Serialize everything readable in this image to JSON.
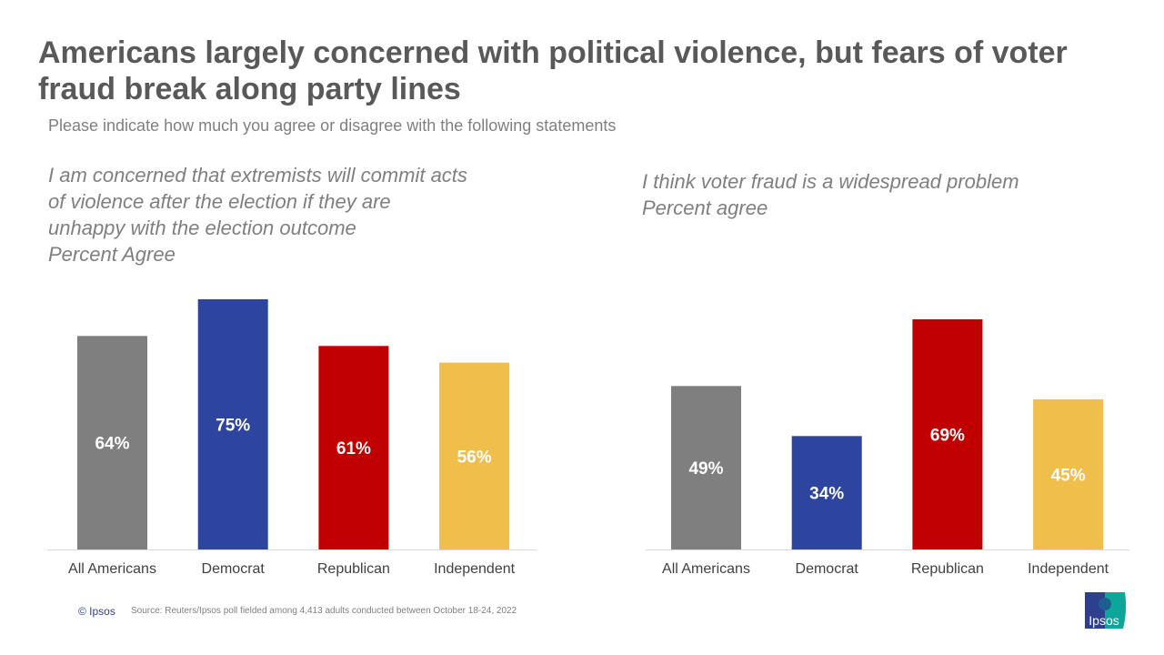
{
  "title": "Americans largely concerned with political violence, but fears of voter fraud break along party lines",
  "subtitle": "Please indicate how much you agree or disagree with the following statements",
  "chart_data": [
    {
      "type": "bar",
      "title_lines": [
        "I am concerned that extremists will commit acts",
        "of violence after the election if they are",
        "unhappy with the election outcome",
        "Percent Agree"
      ],
      "categories": [
        "All Americans",
        "Democrat",
        "Republican",
        "Independent"
      ],
      "values": [
        64,
        75,
        61,
        56
      ],
      "labels": [
        "64%",
        "75%",
        "61%",
        "56%"
      ],
      "colors": [
        "#7f7f7f",
        "#2e45a0",
        "#c00000",
        "#f0be4a"
      ],
      "ylim": [
        0,
        75
      ],
      "grid": false
    },
    {
      "type": "bar",
      "title_lines": [
        "I think voter fraud is a widespread problem",
        "Percent agree"
      ],
      "categories": [
        "All Americans",
        "Democrat",
        "Republican",
        "Independent"
      ],
      "values": [
        49,
        34,
        69,
        45
      ],
      "labels": [
        "49%",
        "34%",
        "69%",
        "45%"
      ],
      "colors": [
        "#7f7f7f",
        "#2e45a0",
        "#c00000",
        "#f0be4a"
      ],
      "ylim": [
        0,
        69
      ],
      "grid": false
    }
  ],
  "footer": {
    "copyright": "© Ipsos",
    "source": "Source: Reuters/Ipsos poll fielded among 4,413 adults conducted between October 18-24, 2022"
  },
  "logo": {
    "text": "Ipsos",
    "colors": [
      "#2e3f8f",
      "#0fa69a"
    ]
  }
}
